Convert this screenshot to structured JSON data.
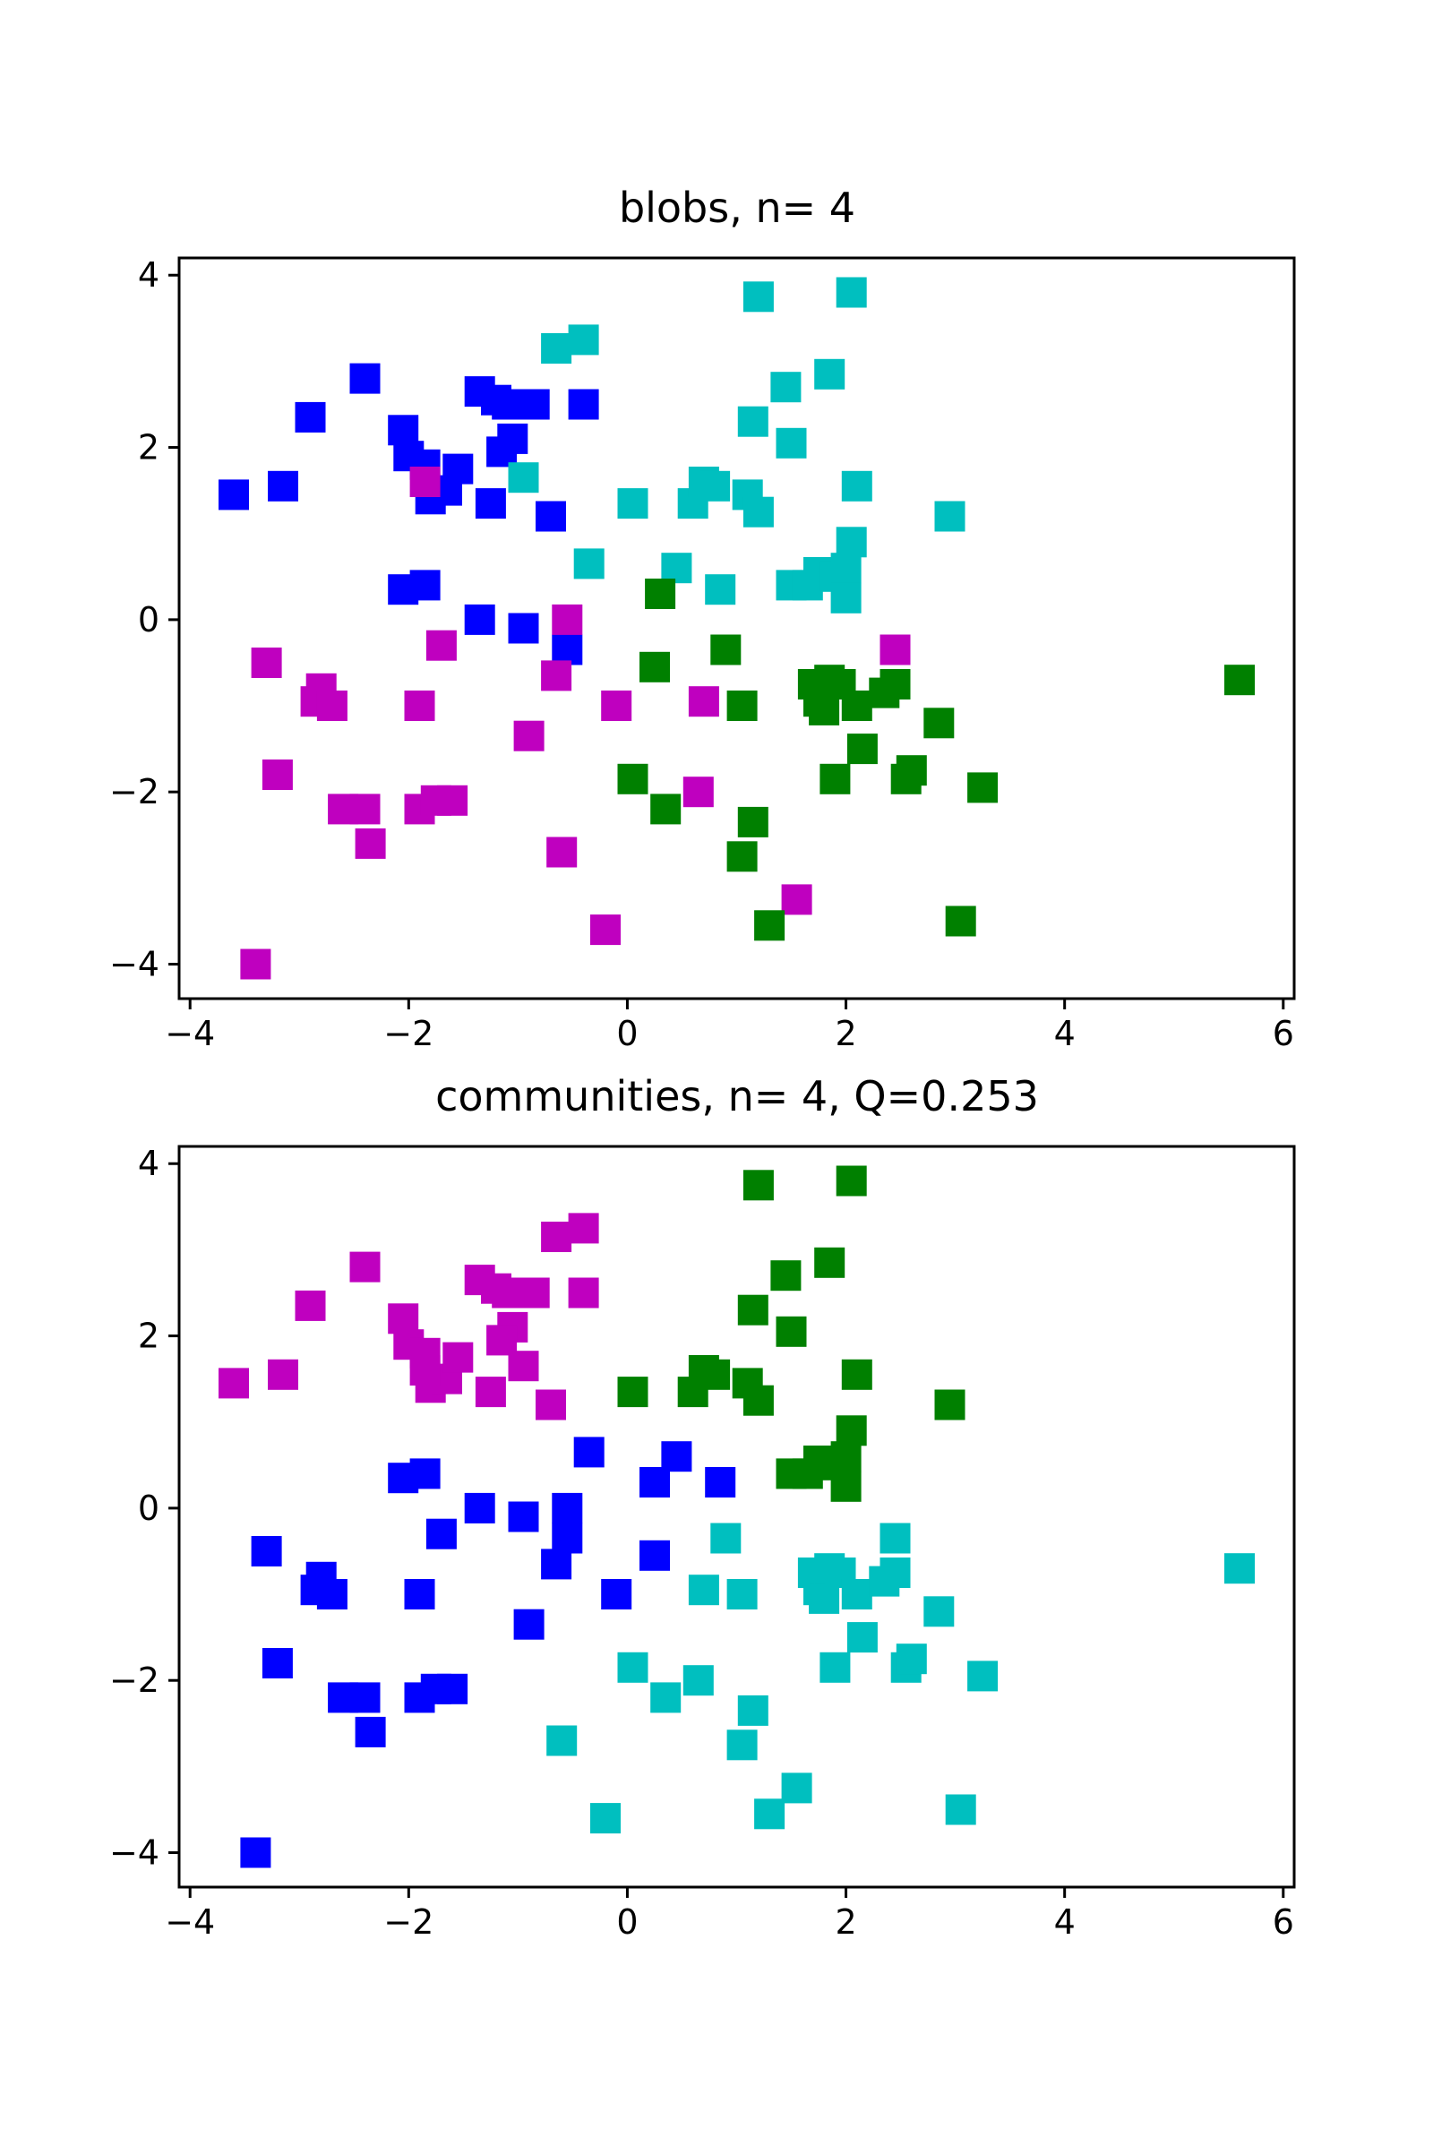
{
  "chart_data": [
    {
      "type": "scatter",
      "title": "blobs, n= 4",
      "xlim": [
        -4.1,
        6.1
      ],
      "ylim": [
        -4.4,
        4.2
      ],
      "xticks": [
        -4,
        -2,
        0,
        2,
        4,
        6
      ],
      "yticks": [
        -4,
        -2,
        0,
        2,
        4
      ],
      "xtick_labels": [
        "−4",
        "−2",
        "0",
        "2",
        "4",
        "6"
      ],
      "ytick_labels": [
        "−4",
        "−2",
        "0",
        "2",
        "4"
      ],
      "marker": "square",
      "series": [
        {
          "color": "#0000ff",
          "points": [
            [
              -3.6,
              1.45
            ],
            [
              -3.15,
              1.55
            ],
            [
              -2.9,
              2.35
            ],
            [
              -2.4,
              2.8
            ],
            [
              -2.05,
              2.2
            ],
            [
              -2.05,
              0.35
            ],
            [
              -2.0,
              1.9
            ],
            [
              -1.85,
              0.4
            ],
            [
              -1.85,
              1.8
            ],
            [
              -1.8,
              1.4
            ],
            [
              -1.65,
              1.5
            ],
            [
              -1.55,
              1.75
            ],
            [
              -1.35,
              2.65
            ],
            [
              -1.35,
              0.0
            ],
            [
              -1.25,
              1.35
            ],
            [
              -1.2,
              2.55
            ],
            [
              -1.1,
              2.5
            ],
            [
              -1.05,
              2.1
            ],
            [
              -1.15,
              1.95
            ],
            [
              -0.95,
              -0.1
            ],
            [
              -0.85,
              2.5
            ],
            [
              -0.7,
              1.2
            ],
            [
              -0.55,
              -0.35
            ],
            [
              -0.4,
              2.5
            ]
          ]
        },
        {
          "color": "#00bfbf",
          "points": [
            [
              -0.65,
              3.15
            ],
            [
              -0.4,
              3.25
            ],
            [
              -0.95,
              1.65
            ],
            [
              -0.35,
              0.65
            ],
            [
              0.05,
              1.35
            ],
            [
              0.45,
              0.6
            ],
            [
              0.6,
              1.35
            ],
            [
              0.7,
              1.6
            ],
            [
              0.8,
              1.55
            ],
            [
              0.85,
              0.35
            ],
            [
              1.1,
              1.45
            ],
            [
              1.2,
              1.25
            ],
            [
              1.15,
              2.3
            ],
            [
              1.2,
              3.75
            ],
            [
              1.45,
              2.7
            ],
            [
              1.5,
              2.05
            ],
            [
              1.5,
              0.4
            ],
            [
              1.65,
              0.4
            ],
            [
              1.75,
              0.55
            ],
            [
              1.85,
              2.85
            ],
            [
              1.9,
              0.5
            ],
            [
              2.0,
              0.6
            ],
            [
              2.0,
              0.25
            ],
            [
              2.05,
              0.9
            ],
            [
              2.05,
              3.8
            ],
            [
              2.1,
              1.55
            ],
            [
              2.95,
              1.2
            ]
          ]
        },
        {
          "color": "#bf00bf",
          "points": [
            [
              -3.3,
              -0.5
            ],
            [
              -3.2,
              -1.8
            ],
            [
              -2.85,
              -0.95
            ],
            [
              -2.8,
              -0.8
            ],
            [
              -2.7,
              -1.0
            ],
            [
              -2.6,
              -2.2
            ],
            [
              -2.4,
              -2.2
            ],
            [
              -2.35,
              -2.6
            ],
            [
              -1.9,
              -2.2
            ],
            [
              -1.9,
              -1.0
            ],
            [
              -1.85,
              1.6
            ],
            [
              -1.75,
              -2.1
            ],
            [
              -1.7,
              -0.3
            ],
            [
              -1.6,
              -2.1
            ],
            [
              -0.9,
              -1.35
            ],
            [
              -0.65,
              -0.65
            ],
            [
              -0.55,
              0.0
            ],
            [
              -0.6,
              -2.7
            ],
            [
              -0.2,
              -3.6
            ],
            [
              -0.1,
              -1.0
            ],
            [
              0.65,
              -2.0
            ],
            [
              0.7,
              -0.95
            ],
            [
              1.55,
              -3.25
            ],
            [
              2.45,
              -0.35
            ],
            [
              -3.4,
              -4.0
            ]
          ]
        },
        {
          "color": "#008000",
          "points": [
            [
              0.3,
              0.3
            ],
            [
              0.25,
              -0.55
            ],
            [
              0.05,
              -1.85
            ],
            [
              0.35,
              -2.2
            ],
            [
              0.9,
              -0.35
            ],
            [
              1.05,
              -1.0
            ],
            [
              1.05,
              -2.75
            ],
            [
              1.15,
              -2.35
            ],
            [
              1.3,
              -3.55
            ],
            [
              1.7,
              -0.75
            ],
            [
              1.75,
              -0.95
            ],
            [
              1.8,
              -1.05
            ],
            [
              1.85,
              -0.7
            ],
            [
              1.95,
              -0.75
            ],
            [
              1.9,
              -1.85
            ],
            [
              2.1,
              -1.0
            ],
            [
              2.15,
              -1.5
            ],
            [
              2.35,
              -0.85
            ],
            [
              2.45,
              -0.75
            ],
            [
              2.55,
              -1.85
            ],
            [
              2.6,
              -1.75
            ],
            [
              2.85,
              -1.2
            ],
            [
              3.05,
              -3.5
            ],
            [
              3.25,
              -1.95
            ],
            [
              5.6,
              -0.7
            ]
          ]
        }
      ]
    },
    {
      "type": "scatter",
      "title": "communities, n= 4, Q=0.253",
      "xlim": [
        -4.1,
        6.1
      ],
      "ylim": [
        -4.4,
        4.2
      ],
      "xticks": [
        -4,
        -2,
        0,
        2,
        4,
        6
      ],
      "yticks": [
        -4,
        -2,
        0,
        2,
        4
      ],
      "xtick_labels": [
        "−4",
        "−2",
        "0",
        "2",
        "4",
        "6"
      ],
      "ytick_labels": [
        "−4",
        "−2",
        "0",
        "2",
        "4"
      ],
      "marker": "square",
      "series": [
        {
          "color": "#bf00bf",
          "points": [
            [
              -3.6,
              1.45
            ],
            [
              -3.15,
              1.55
            ],
            [
              -2.9,
              2.35
            ],
            [
              -2.4,
              2.8
            ],
            [
              -2.05,
              2.2
            ],
            [
              -2.0,
              1.9
            ],
            [
              -1.85,
              1.8
            ],
            [
              -1.8,
              1.4
            ],
            [
              -1.65,
              1.5
            ],
            [
              -1.55,
              1.75
            ],
            [
              -1.85,
              1.6
            ],
            [
              -1.35,
              2.65
            ],
            [
              -1.25,
              1.35
            ],
            [
              -1.2,
              2.55
            ],
            [
              -1.1,
              2.5
            ],
            [
              -1.05,
              2.1
            ],
            [
              -1.15,
              1.95
            ],
            [
              -0.95,
              1.65
            ],
            [
              -0.85,
              2.5
            ],
            [
              -0.7,
              1.2
            ],
            [
              -0.4,
              2.5
            ],
            [
              -0.65,
              3.15
            ],
            [
              -0.4,
              3.25
            ]
          ]
        },
        {
          "color": "#0000ff",
          "points": [
            [
              -2.05,
              0.35
            ],
            [
              -1.85,
              0.4
            ],
            [
              -1.7,
              -0.3
            ],
            [
              -1.35,
              0.0
            ],
            [
              -0.95,
              -0.1
            ],
            [
              -0.55,
              -0.35
            ],
            [
              -0.55,
              0.0
            ],
            [
              -0.65,
              -0.65
            ],
            [
              -0.35,
              0.65
            ],
            [
              0.25,
              0.3
            ],
            [
              0.45,
              0.6
            ],
            [
              0.85,
              0.3
            ],
            [
              0.25,
              -0.55
            ],
            [
              -0.1,
              -1.0
            ],
            [
              -0.9,
              -1.35
            ],
            [
              -1.9,
              -1.0
            ],
            [
              -2.85,
              -0.95
            ],
            [
              -2.8,
              -0.8
            ],
            [
              -2.7,
              -1.0
            ],
            [
              -3.3,
              -0.5
            ],
            [
              -3.2,
              -1.8
            ],
            [
              -2.6,
              -2.2
            ],
            [
              -2.4,
              -2.2
            ],
            [
              -2.35,
              -2.6
            ],
            [
              -1.9,
              -2.2
            ],
            [
              -1.75,
              -2.1
            ],
            [
              -1.6,
              -2.1
            ],
            [
              -3.4,
              -4.0
            ]
          ]
        },
        {
          "color": "#008000",
          "points": [
            [
              0.05,
              1.35
            ],
            [
              0.6,
              1.35
            ],
            [
              0.7,
              1.6
            ],
            [
              0.8,
              1.55
            ],
            [
              1.1,
              1.45
            ],
            [
              1.2,
              1.25
            ],
            [
              1.15,
              2.3
            ],
            [
              1.2,
              3.75
            ],
            [
              1.45,
              2.7
            ],
            [
              1.5,
              2.05
            ],
            [
              1.5,
              0.4
            ],
            [
              1.65,
              0.4
            ],
            [
              1.75,
              0.55
            ],
            [
              1.85,
              2.85
            ],
            [
              1.9,
              0.5
            ],
            [
              2.0,
              0.6
            ],
            [
              2.0,
              0.25
            ],
            [
              2.05,
              0.9
            ],
            [
              2.05,
              3.8
            ],
            [
              2.1,
              1.55
            ],
            [
              2.95,
              1.2
            ]
          ]
        },
        {
          "color": "#00bfbf",
          "points": [
            [
              0.9,
              -0.35
            ],
            [
              0.7,
              -0.95
            ],
            [
              1.05,
              -1.0
            ],
            [
              0.05,
              -1.85
            ],
            [
              0.35,
              -2.2
            ],
            [
              0.65,
              -2.0
            ],
            [
              1.05,
              -2.75
            ],
            [
              1.15,
              -2.35
            ],
            [
              1.3,
              -3.55
            ],
            [
              1.55,
              -3.25
            ],
            [
              -0.6,
              -2.7
            ],
            [
              -0.2,
              -3.6
            ],
            [
              1.7,
              -0.75
            ],
            [
              1.75,
              -0.95
            ],
            [
              1.8,
              -1.05
            ],
            [
              1.85,
              -0.7
            ],
            [
              1.95,
              -0.75
            ],
            [
              1.9,
              -1.85
            ],
            [
              2.1,
              -1.0
            ],
            [
              2.15,
              -1.5
            ],
            [
              2.35,
              -0.85
            ],
            [
              2.45,
              -0.75
            ],
            [
              2.45,
              -0.35
            ],
            [
              2.55,
              -1.85
            ],
            [
              2.6,
              -1.75
            ],
            [
              2.85,
              -1.2
            ],
            [
              3.05,
              -3.5
            ],
            [
              3.25,
              -1.95
            ],
            [
              5.6,
              -0.7
            ]
          ]
        }
      ]
    }
  ]
}
